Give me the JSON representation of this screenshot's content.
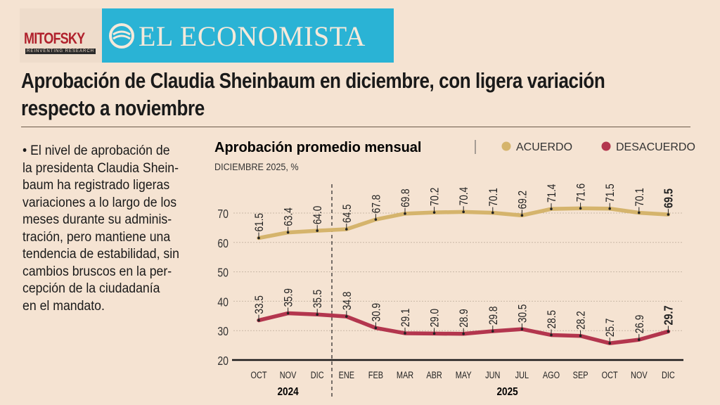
{
  "logos": {
    "mitofsky": "MITOFSKY",
    "mitofsky_tagline": "REINVENTING RESEARCH",
    "el_economista": "EL ECONOMISTA"
  },
  "colors": {
    "background": "#f5e3d2",
    "brand_blue": "#2ab3d5",
    "acuerdo": "#d5b46c",
    "desacuerdo": "#b3364e"
  },
  "headline": {
    "line1": "Aprobación de Claudia Sheinbaum en diciembre, con ligera variación",
    "line2": "respecto a noviembre"
  },
  "body_text": [
    "• El nivel de aprobación de",
    "la presidenta Claudia Shein-",
    "baum ha registrado ligeras",
    "variaciones a lo largo de los",
    "meses durante su adminis-",
    "tración, pero mantiene una",
    "tendencia de estabilidad, sin",
    "cambios bruscos en la per-",
    "cepción de la ciudadanía",
    "en el mandato."
  ],
  "chart_data": {
    "type": "line",
    "title": "Aprobación promedio mensual",
    "subtitle": "DICIEMBRE 2025, %",
    "categories": [
      "OCT",
      "NOV",
      "DIC",
      "ENE",
      "FEB",
      "MAR",
      "ABR",
      "MAY",
      "JUN",
      "JUL",
      "AGO",
      "SEP",
      "OCT",
      "NOV",
      "DIC"
    ],
    "year_groups": [
      {
        "label": "2024",
        "months": 3
      },
      {
        "label": "2025",
        "months": 12
      }
    ],
    "y_ticks": [
      20,
      30,
      40,
      50,
      60,
      70
    ],
    "ylim": [
      20,
      75
    ],
    "grid": true,
    "legend_placement": "top-right",
    "series": [
      {
        "name": "ACUERDO",
        "color": "#d5b46c",
        "values": [
          61.5,
          63.4,
          64.0,
          64.5,
          67.8,
          69.8,
          70.2,
          70.4,
          70.1,
          69.2,
          71.4,
          71.6,
          71.5,
          70.1,
          69.5
        ],
        "labels": [
          "61.5",
          "63.4",
          "64.0",
          "64.5",
          "67.8",
          "69.8",
          "70.2",
          "70.4",
          "70.1",
          "69.2",
          "71.4",
          "71.6",
          "71.5",
          "70.1",
          "69.5"
        ]
      },
      {
        "name": "DESACUERDO",
        "color": "#b3364e",
        "values": [
          33.5,
          35.9,
          35.5,
          34.8,
          30.9,
          29.1,
          29.0,
          28.9,
          29.8,
          30.5,
          28.5,
          28.2,
          25.7,
          26.9,
          29.7
        ],
        "labels": [
          "33.5",
          "35.9",
          "35.5",
          "34.8",
          "30.9",
          "29.1",
          "29.0",
          "28.9",
          "29.8",
          "30.5",
          "28.5",
          "28.2",
          "25.7",
          "26.9",
          "29.7"
        ]
      }
    ]
  }
}
